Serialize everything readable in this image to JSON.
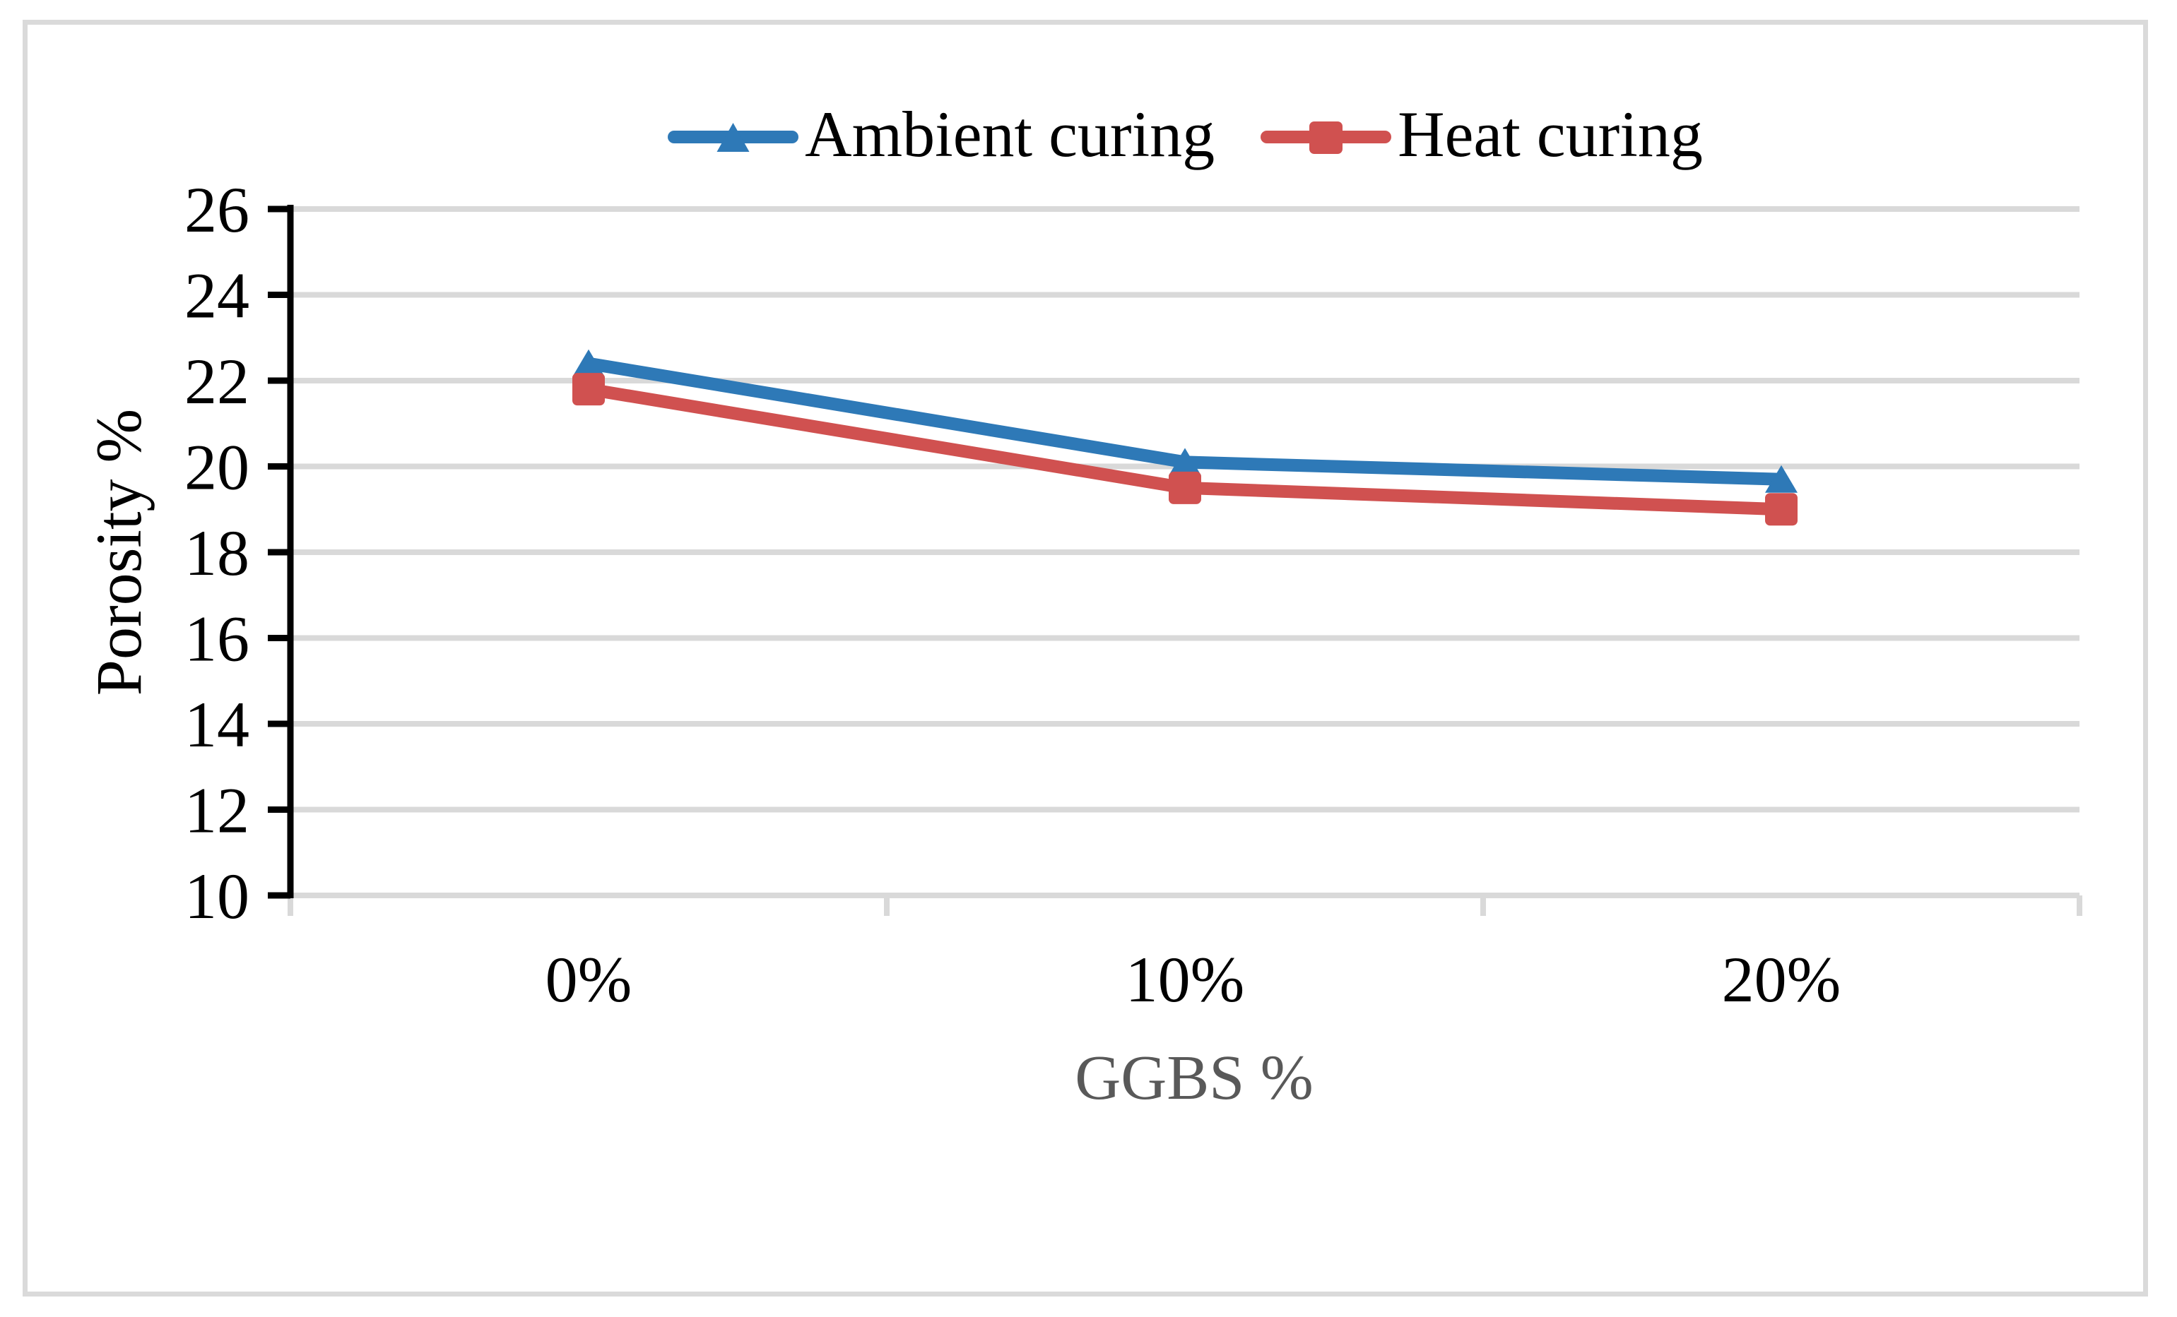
{
  "figure": {
    "background": "#FFFFFF",
    "border_color": "#DADADA"
  },
  "chart_data": {
    "type": "line",
    "categories": [
      "0%",
      "10%",
      "20%"
    ],
    "series": [
      {
        "name": "Ambient curing",
        "color": "#2E79B7",
        "marker": "triangle",
        "values": [
          22.4,
          20.1,
          19.7
        ]
      },
      {
        "name": "Heat curing",
        "color": "#D05150",
        "marker": "square",
        "values": [
          21.8,
          19.5,
          19.0
        ]
      }
    ],
    "xlabel": "GGBS %",
    "ylabel": "Porosity %",
    "ylim": [
      10,
      26
    ],
    "yticks": [
      10,
      12,
      14,
      16,
      18,
      20,
      22,
      24,
      26
    ],
    "grid": "horizontal-major",
    "legend_position": "top-center"
  },
  "styles": {
    "gridline_color": "#D9D9D9",
    "axis_color": "#000000",
    "tick_label_color": "#000000",
    "x_title_color": "#595959",
    "y_title_color": "#000000"
  }
}
